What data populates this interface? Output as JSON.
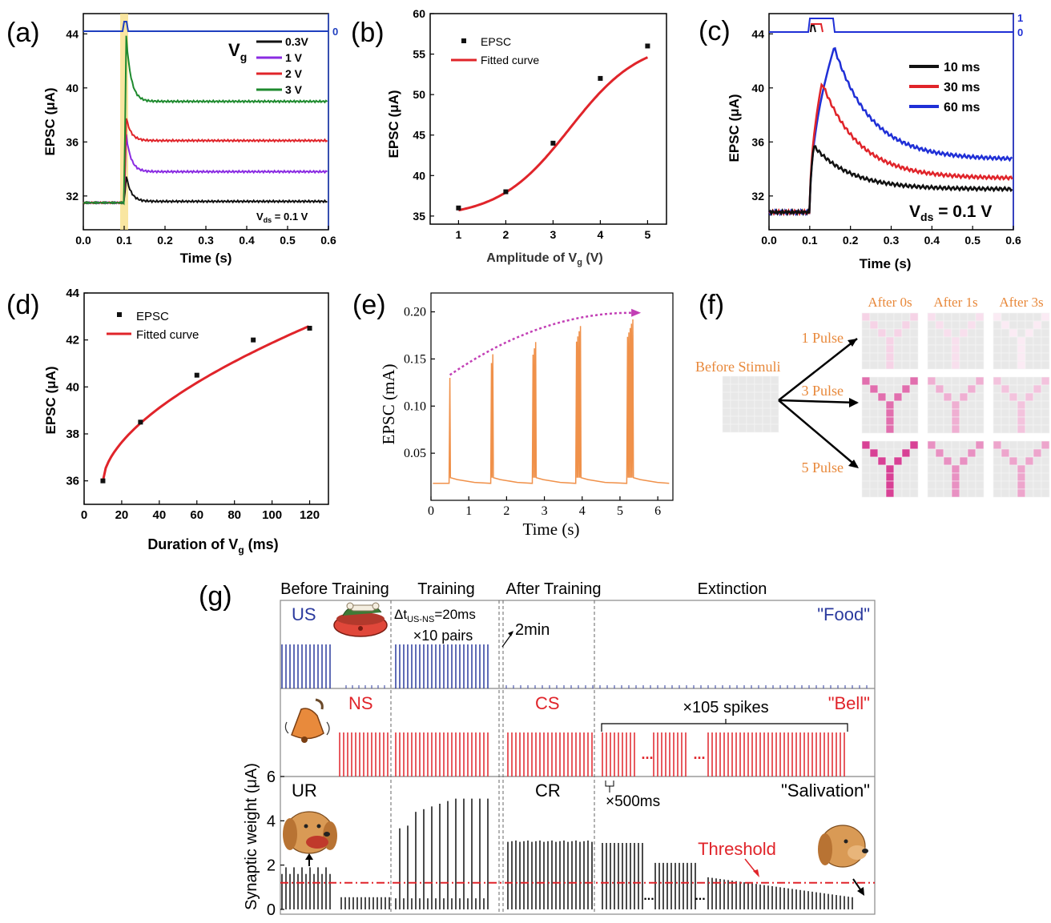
{
  "panels": {
    "a": {
      "letter": "(a)",
      "xlabel": "Time (s)",
      "ylabel": "EPSC (μA)",
      "xticks": [
        "0.0",
        "0.1",
        "0.2",
        "0.3",
        "0.4",
        "0.5",
        "0.6"
      ],
      "yticks": [
        "32",
        "36",
        "40",
        "44"
      ],
      "right_tick": "0",
      "legend_title": "Vg",
      "annotation": "Vds = 0.1 V",
      "colors": {
        "pulse": "#1f3fbf",
        "highlight": "#f7e08a"
      }
    },
    "b": {
      "letter": "(b)",
      "xlabel": "Amplitude of Vg (V)",
      "ylabel": "EPSC (μA)",
      "xticks": [
        "1",
        "2",
        "3",
        "4",
        "5"
      ],
      "yticks": [
        "35",
        "40",
        "45",
        "50",
        "55",
        "60"
      ],
      "legend": [
        "EPSC",
        "Fitted curve"
      ]
    },
    "c": {
      "letter": "(c)",
      "xlabel": "Time (s)",
      "ylabel": "EPSC (μA)",
      "xticks": [
        "0.0",
        "0.1",
        "0.2",
        "0.3",
        "0.4",
        "0.5",
        "0.6"
      ],
      "yticks": [
        "32",
        "36",
        "40",
        "44"
      ],
      "right_ticks": [
        "1",
        "0"
      ],
      "annotation": "Vds = 0.1 V"
    },
    "d": {
      "letter": "(d)",
      "xlabel": "Duration of Vg (ms)",
      "ylabel": "EPSC (μA)",
      "xticks": [
        "0",
        "20",
        "40",
        "60",
        "80",
        "100",
        "120"
      ],
      "yticks": [
        "36",
        "38",
        "40",
        "42",
        "44"
      ],
      "legend": [
        "EPSC",
        "Fitted curve"
      ]
    },
    "e": {
      "letter": "(e)",
      "xlabel": "Time (s)",
      "ylabel": "EPSC (mA)",
      "xticks": [
        "0",
        "1",
        "2",
        "3",
        "4",
        "5",
        "6"
      ],
      "yticks": [
        "0.05",
        "0.10",
        "0.15",
        "0.20"
      ],
      "colors": {
        "trace": "#f0914a",
        "arrow": "#c23fb5"
      }
    },
    "f": {
      "letter": "(f)",
      "before": "Before Stimuli",
      "columns": [
        "After 0s",
        "After 1s",
        "After 3s"
      ],
      "rows": [
        "1 Pulse",
        "3 Pulse",
        "5 Pulse"
      ],
      "intensity": [
        [
          0.22,
          0.16,
          0.1
        ],
        [
          0.72,
          0.4,
          0.3
        ],
        [
          0.95,
          0.55,
          0.45
        ]
      ],
      "colors": {
        "label": "#e8883a",
        "pixel": "#d6378f",
        "bg": "#e8e8e8"
      }
    },
    "g": {
      "letter": "(g)",
      "phases": [
        "Before Training",
        "Training",
        "After Training",
        "Extinction"
      ],
      "ylabel": "Synaptic weight (μA)",
      "yticks": [
        "0",
        "2",
        "4",
        "6"
      ],
      "us": "US",
      "food": "\"Food\"",
      "dt_label": "Δt",
      "dt_sub": "US-NS",
      "dt_value": "=20ms",
      "pairs": "×10 pairs",
      "twomin": "2min",
      "ns": "NS",
      "cs": "CS",
      "bell": "\"Bell\"",
      "spikes": "×105 spikes",
      "ellipsis": "...",
      "ur": "UR",
      "cr": "CR",
      "salivation": "\"Salivation\"",
      "interval": "×500ms",
      "threshold": "Threshold",
      "threshold_value": 1.2,
      "colors": {
        "us": "#2b3a9e",
        "ns": "#e0242a",
        "threshold": "#e0242a"
      }
    }
  },
  "chart_data": [
    {
      "type": "line",
      "panel": "a",
      "xlabel": "Time (s)",
      "ylabel": "EPSC (μA)",
      "xlim": [
        0,
        0.6
      ],
      "ylim": [
        29.5,
        45.5
      ],
      "legend": "top-right",
      "series": [
        {
          "name": "0.3V",
          "color": "#111111",
          "baseline": 31.5,
          "peak": 33.5,
          "plateau": 31.6
        },
        {
          "name": "1 V",
          "color": "#8a2be2",
          "baseline": 31.5,
          "peak": 36.5,
          "plateau": 33.8
        },
        {
          "name": "2 V",
          "color": "#e0242a",
          "baseline": 31.5,
          "peak": 37.8,
          "plateau": 36.1
        },
        {
          "name": "3 V",
          "color": "#1e8a2e",
          "baseline": 31.5,
          "peak": 43.8,
          "plateau": 39.0
        }
      ]
    },
    {
      "type": "scatter",
      "panel": "b",
      "xlabel": "Amplitude of Vg (V)",
      "ylabel": "EPSC (μA)",
      "xlim": [
        0.4,
        5.4
      ],
      "ylim": [
        34,
        60
      ],
      "legend": "top-left",
      "x": [
        1,
        2,
        3,
        4,
        5
      ],
      "series": [
        {
          "name": "EPSC",
          "values": [
            36,
            38,
            44,
            52,
            56
          ]
        },
        {
          "name": "Fitted curve",
          "values": [
            36,
            38,
            44,
            52,
            56
          ]
        }
      ]
    },
    {
      "type": "line",
      "panel": "c",
      "xlabel": "Time (s)",
      "ylabel": "EPSC (μA)",
      "xlim": [
        0,
        0.6
      ],
      "ylim": [
        29.5,
        45.5
      ],
      "legend": "top-right",
      "series": [
        {
          "name": "10 ms",
          "color": "#111111",
          "peak": 35.7,
          "end": 32.5
        },
        {
          "name": "30 ms",
          "color": "#e0242a",
          "peak": 40.4,
          "end": 33.3
        },
        {
          "name": "60 ms",
          "color": "#1f2fd6",
          "peak": 43.0,
          "end": 34.7
        }
      ]
    },
    {
      "type": "scatter",
      "panel": "d",
      "xlabel": "Duration of Vg (ms)",
      "ylabel": "EPSC (μA)",
      "xlim": [
        0,
        130
      ],
      "ylim": [
        35,
        44
      ],
      "legend": "top-left",
      "x": [
        10,
        30,
        60,
        90,
        120
      ],
      "series": [
        {
          "name": "EPSC",
          "values": [
            36.0,
            38.5,
            40.5,
            42.0,
            42.5
          ]
        },
        {
          "name": "Fitted curve",
          "values": [
            36.0,
            38.5,
            40.5,
            42.0,
            42.5
          ]
        }
      ]
    },
    {
      "type": "line",
      "panel": "e",
      "xlabel": "Time (s)",
      "ylabel": "EPSC (mA)",
      "xlim": [
        0,
        6.4
      ],
      "ylim": [
        0,
        0.22
      ],
      "pulse_count": [
        1,
        2,
        3,
        4,
        5
      ],
      "x": [
        0.5,
        1.6,
        2.7,
        3.85,
        5.2
      ],
      "values": [
        0.13,
        0.155,
        0.168,
        0.185,
        0.192
      ]
    },
    {
      "type": "bar",
      "panel": "g",
      "ylabel": "Synaptic weight (μA)",
      "ylim": [
        0,
        6
      ],
      "threshold": 1.2,
      "segments": [
        {
          "phase": "Before Training",
          "US": 1.9
        },
        {
          "phase": "Before Training",
          "NS": 0.6
        },
        {
          "phase": "Training",
          "values": [
            3.6,
            4.3,
            4.6,
            4.8,
            4.9,
            5.0,
            5.0,
            4.9,
            5.0,
            5.0
          ]
        },
        {
          "phase": "After Training",
          "CR": 3.1
        },
        {
          "phase": "Extinction",
          "values": [
            3.0,
            2.1,
            1.3,
            0.6
          ]
        }
      ]
    }
  ]
}
